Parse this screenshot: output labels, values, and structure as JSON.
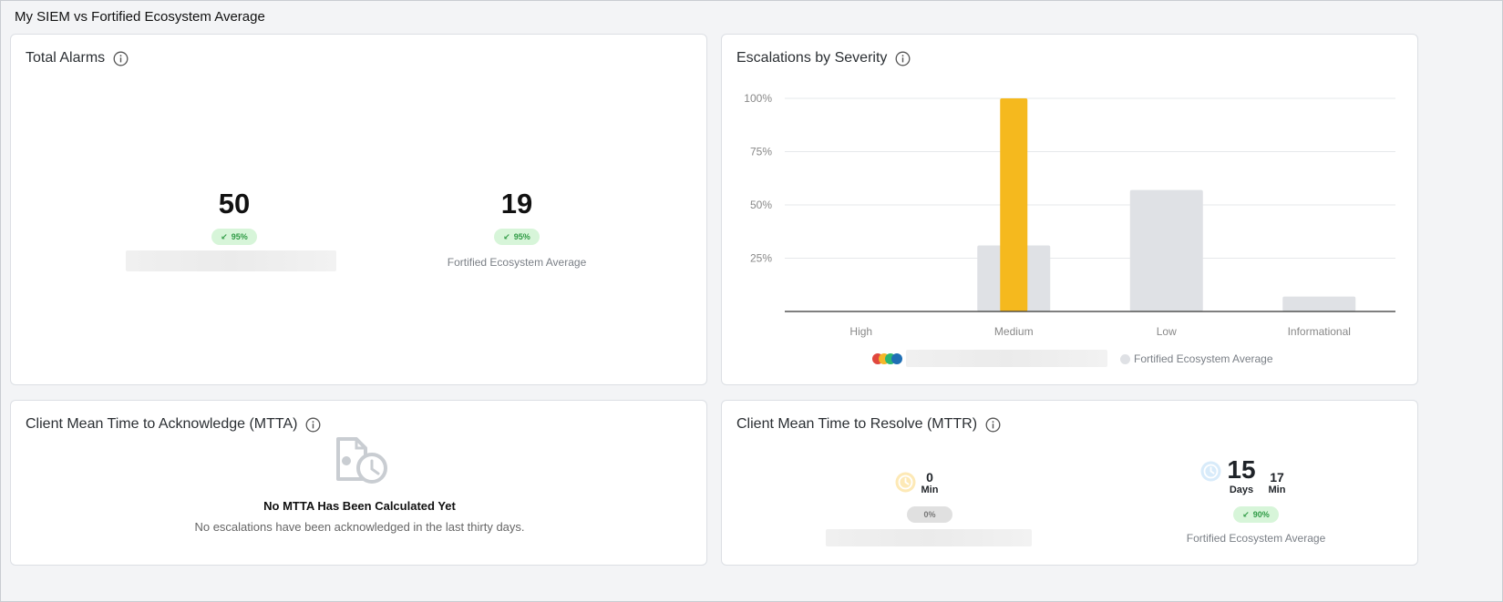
{
  "page": {
    "title": "My SIEM vs Fortified Ecosystem Average"
  },
  "total_alarms": {
    "title": "Total Alarms",
    "mine": {
      "value": "50",
      "trend": "95%"
    },
    "fortified": {
      "value": "19",
      "trend": "95%",
      "label": "Fortified Ecosystem Average"
    }
  },
  "escalations": {
    "title": "Escalations by Severity",
    "legend_fortified": "Fortified Ecosystem Average",
    "legend_dot_colors": [
      "#e0473e",
      "#f4b728",
      "#2bb673",
      "#1f6fb5"
    ]
  },
  "chart_data": {
    "type": "bar",
    "categories": [
      "High",
      "Medium",
      "Low",
      "Informational"
    ],
    "series": [
      {
        "name": "Fortified Ecosystem Average",
        "values": [
          0,
          31,
          57,
          7
        ],
        "color": "#dfe1e5"
      },
      {
        "values": [
          0,
          100,
          0,
          0
        ],
        "color": "#f5b91e"
      }
    ],
    "y_ticks": [
      "100%",
      "75%",
      "50%",
      "25%"
    ],
    "y_tick_values": [
      100,
      75,
      50,
      25
    ],
    "ylim": [
      0,
      100
    ],
    "grid": true,
    "legend_position": "bottom"
  },
  "mtta": {
    "title": "Client Mean Time to Acknowledge (MTTA)",
    "empty_title": "No MTTA Has Been Calculated Yet",
    "empty_text": "No escalations have been acknowledged in the last thirty days."
  },
  "mttr": {
    "title": "Client Mean Time to Resolve (MTTR)",
    "mine": {
      "min_value": "0",
      "min_unit": "Min",
      "trend": "0%"
    },
    "fortified": {
      "days_value": "15",
      "days_unit": "Days",
      "min_value": "17",
      "min_unit": "Min",
      "trend": "90%",
      "label": "Fortified Ecosystem Average"
    }
  }
}
